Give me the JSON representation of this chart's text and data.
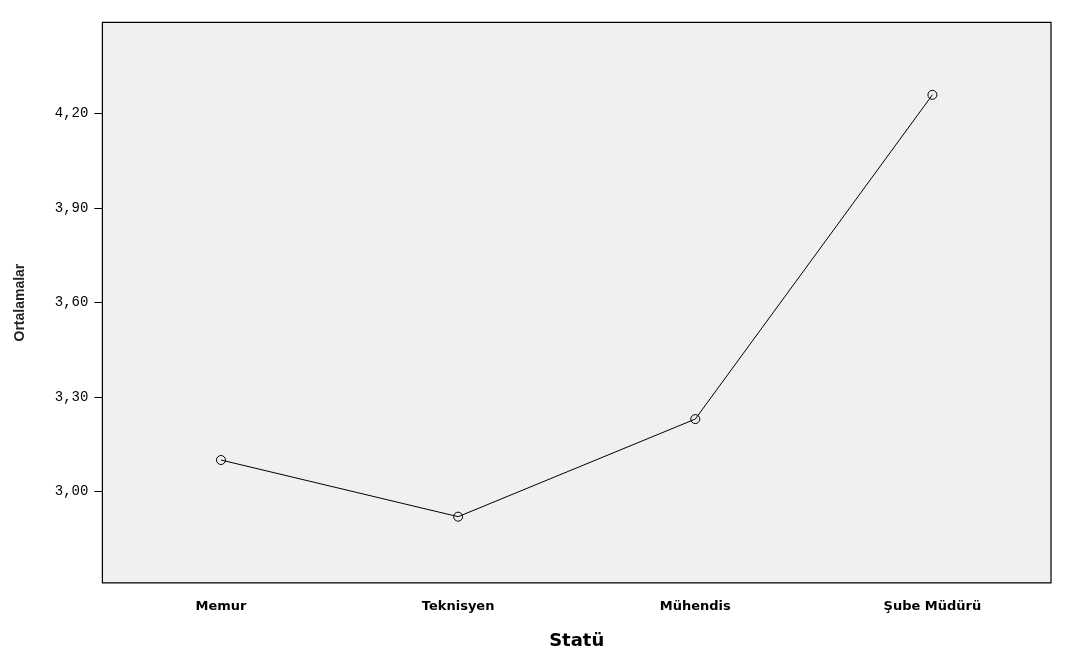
{
  "chart_data": {
    "type": "line",
    "xlabel": "Statü",
    "ylabel": "Ortalamalar",
    "categories": [
      "Memur",
      "Teknisyen",
      "Mühendis",
      "Şube Müdürü"
    ],
    "series": [
      {
        "color": "#000000",
        "values": [
          3.1,
          2.92,
          3.23,
          4.26
        ]
      }
    ],
    "ylim": [
      2.71,
      4.49
    ],
    "yticks": [
      {
        "value": 3.0,
        "label": "3,00"
      },
      {
        "value": 3.3,
        "label": "3,30"
      },
      {
        "value": 3.6,
        "label": "3,60"
      },
      {
        "value": 3.9,
        "label": "3,90"
      },
      {
        "value": 4.2,
        "label": "4,20"
      }
    ],
    "grid": false,
    "legend": false,
    "marker": "circle",
    "line_style": "solid"
  }
}
